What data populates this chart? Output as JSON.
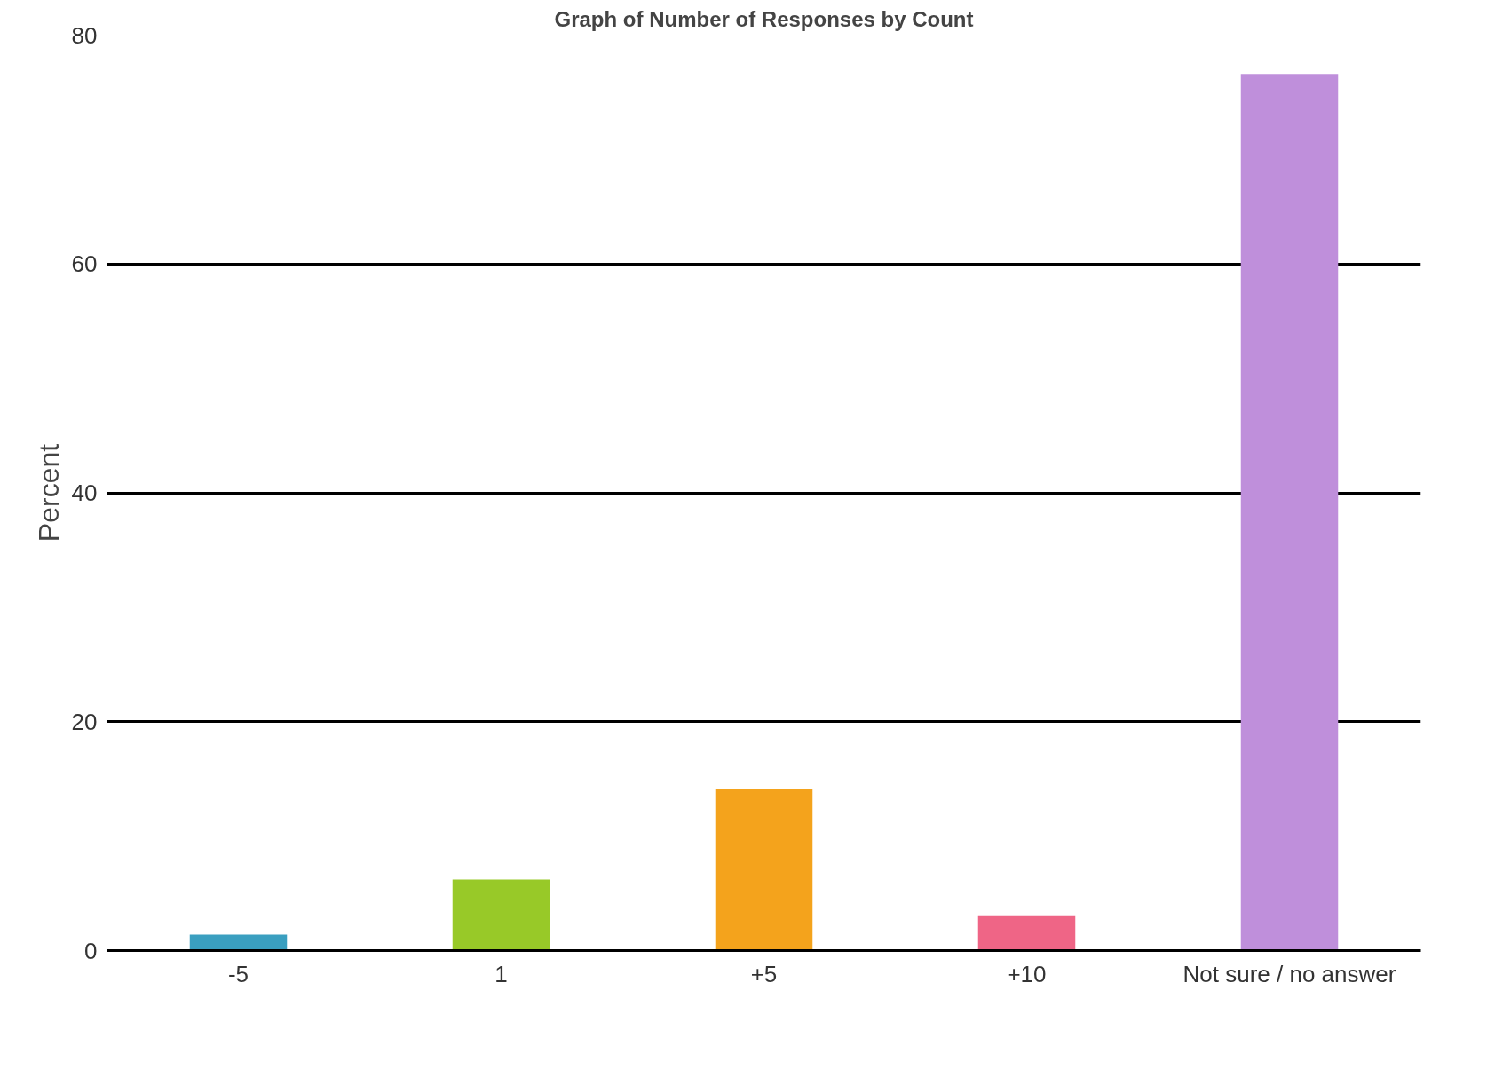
{
  "chart_data": {
    "type": "bar",
    "title": "Graph of Number of Responses by Count",
    "ylabel": "Percent",
    "categories": [
      "-5",
      "1",
      "+5",
      "+10",
      "Not sure / no answer"
    ],
    "values": [
      1.4,
      6.2,
      14.1,
      3.0,
      76.6
    ],
    "colors": [
      "#3a9fc0",
      "#98c928",
      "#f4a31c",
      "#ef6586",
      "#bf8fdb"
    ],
    "ylim": [
      0,
      80
    ],
    "yticks": [
      0,
      20,
      40,
      60,
      80
    ],
    "grid": "y"
  }
}
